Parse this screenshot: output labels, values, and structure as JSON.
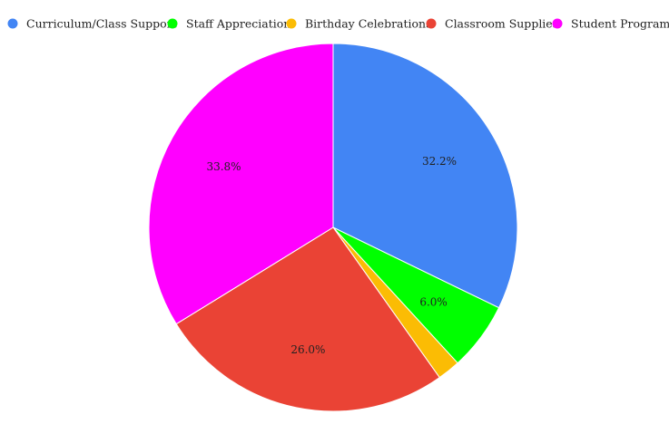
{
  "chart_data": {
    "type": "pie",
    "title": "",
    "legend_position": "top",
    "slices": [
      {
        "label": "Curriculum/Class Support",
        "value": 32.2,
        "value_label": "32.2%",
        "color": "#4285f4"
      },
      {
        "label": "Staff Appreciation",
        "value": 6.0,
        "value_label": "6.0%",
        "color": "#00ff00"
      },
      {
        "label": "Birthday Celebrations",
        "value": 2.0,
        "value_label": "",
        "color": "#fbbc04"
      },
      {
        "label": "Classroom Supplies",
        "value": 26.0,
        "value_label": "26.0%",
        "color": "#ea4335"
      },
      {
        "label": "Student Programs",
        "value": 33.8,
        "value_label": "33.8%",
        "color": "#ff00ff"
      }
    ]
  }
}
